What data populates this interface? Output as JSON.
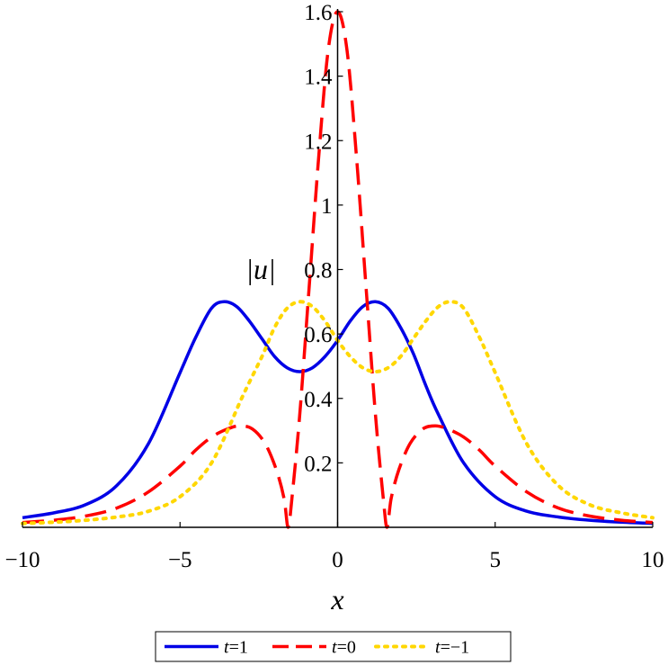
{
  "chart_data": {
    "type": "line",
    "xlabel": "x",
    "ylabel": "|u|",
    "xlim": [
      -10,
      10
    ],
    "ylim": [
      0,
      1.6
    ],
    "grid": false,
    "legend_position": "bottom",
    "x_ticks": [
      {
        "value": -10,
        "label": "−10"
      },
      {
        "value": -5,
        "label": "−5"
      },
      {
        "value": 0,
        "label": "0"
      },
      {
        "value": 5,
        "label": "5"
      },
      {
        "value": 10,
        "label": "10"
      }
    ],
    "y_ticks": [
      {
        "value": 0.2,
        "label": "0.2"
      },
      {
        "value": 0.4,
        "label": "0.4"
      },
      {
        "value": 0.6,
        "label": "0.6"
      },
      {
        "value": 0.8,
        "label": "0.8"
      },
      {
        "value": 1.0,
        "label": "1"
      },
      {
        "value": 1.2,
        "label": "1.2"
      },
      {
        "value": 1.4,
        "label": "1.4"
      },
      {
        "value": 1.6,
        "label": "1.6"
      }
    ],
    "series": [
      {
        "name": "t=1",
        "var": "t",
        "value": "1",
        "color": "#0000e6",
        "style": "solid",
        "x": [
          -10,
          -9,
          -8,
          -7,
          -6,
          -5,
          -4.5,
          -4,
          -3.6,
          -3.2,
          -2.8,
          -2.4,
          -2,
          -1.6,
          -1.2,
          -0.8,
          -0.4,
          0,
          0.4,
          0.8,
          1.2,
          1.6,
          2,
          2.4,
          2.8,
          3.2,
          4,
          5,
          6,
          7,
          8,
          9,
          10
        ],
        "y": [
          0.03,
          0.045,
          0.07,
          0.13,
          0.26,
          0.48,
          0.59,
          0.68,
          0.7,
          0.685,
          0.64,
          0.585,
          0.53,
          0.495,
          0.483,
          0.495,
          0.53,
          0.58,
          0.64,
          0.685,
          0.7,
          0.68,
          0.62,
          0.54,
          0.44,
          0.35,
          0.2,
          0.095,
          0.05,
          0.032,
          0.022,
          0.016,
          0.012
        ]
      },
      {
        "name": "t=0",
        "var": "t",
        "value": "0",
        "color": "#ff0000",
        "style": "dash",
        "x": [
          -10,
          -9,
          -8,
          -7,
          -6,
          -5,
          -4.5,
          -4,
          -3.5,
          -3.1,
          -2.7,
          -2.3,
          -1.95,
          -1.7,
          -1.57,
          -1.45,
          -1.2,
          -0.9,
          -0.6,
          -0.3,
          0,
          0.3,
          0.6,
          0.9,
          1.2,
          1.45,
          1.57,
          1.7,
          1.95,
          2.3,
          2.7,
          3.1,
          3.5,
          4,
          4.5,
          5,
          6,
          7,
          8,
          9,
          10
        ],
        "y": [
          0.015,
          0.022,
          0.035,
          0.06,
          0.11,
          0.19,
          0.24,
          0.28,
          0.305,
          0.315,
          0.305,
          0.26,
          0.18,
          0.09,
          0.0,
          0.09,
          0.35,
          0.75,
          1.15,
          1.48,
          1.6,
          1.48,
          1.15,
          0.75,
          0.35,
          0.09,
          0.0,
          0.09,
          0.18,
          0.26,
          0.305,
          0.315,
          0.305,
          0.28,
          0.24,
          0.19,
          0.11,
          0.06,
          0.035,
          0.022,
          0.015
        ]
      },
      {
        "name": "t=−1",
        "var": "t",
        "value": "−1",
        "color": "#ffd700",
        "style": "dot",
        "x": [
          -10,
          -9,
          -8,
          -7,
          -6,
          -5,
          -4,
          -3,
          -2.4,
          -2,
          -1.6,
          -1.2,
          -0.8,
          -0.4,
          0,
          0.4,
          0.8,
          1.2,
          1.6,
          2,
          2.4,
          2.8,
          3.2,
          3.6,
          4,
          4.5,
          5,
          6,
          7,
          8,
          9,
          10
        ],
        "y": [
          0.012,
          0.016,
          0.022,
          0.032,
          0.05,
          0.095,
          0.2,
          0.41,
          0.53,
          0.62,
          0.68,
          0.7,
          0.685,
          0.64,
          0.58,
          0.53,
          0.495,
          0.483,
          0.495,
          0.53,
          0.585,
          0.64,
          0.685,
          0.7,
          0.68,
          0.59,
          0.48,
          0.26,
          0.13,
          0.07,
          0.045,
          0.03
        ]
      }
    ]
  }
}
